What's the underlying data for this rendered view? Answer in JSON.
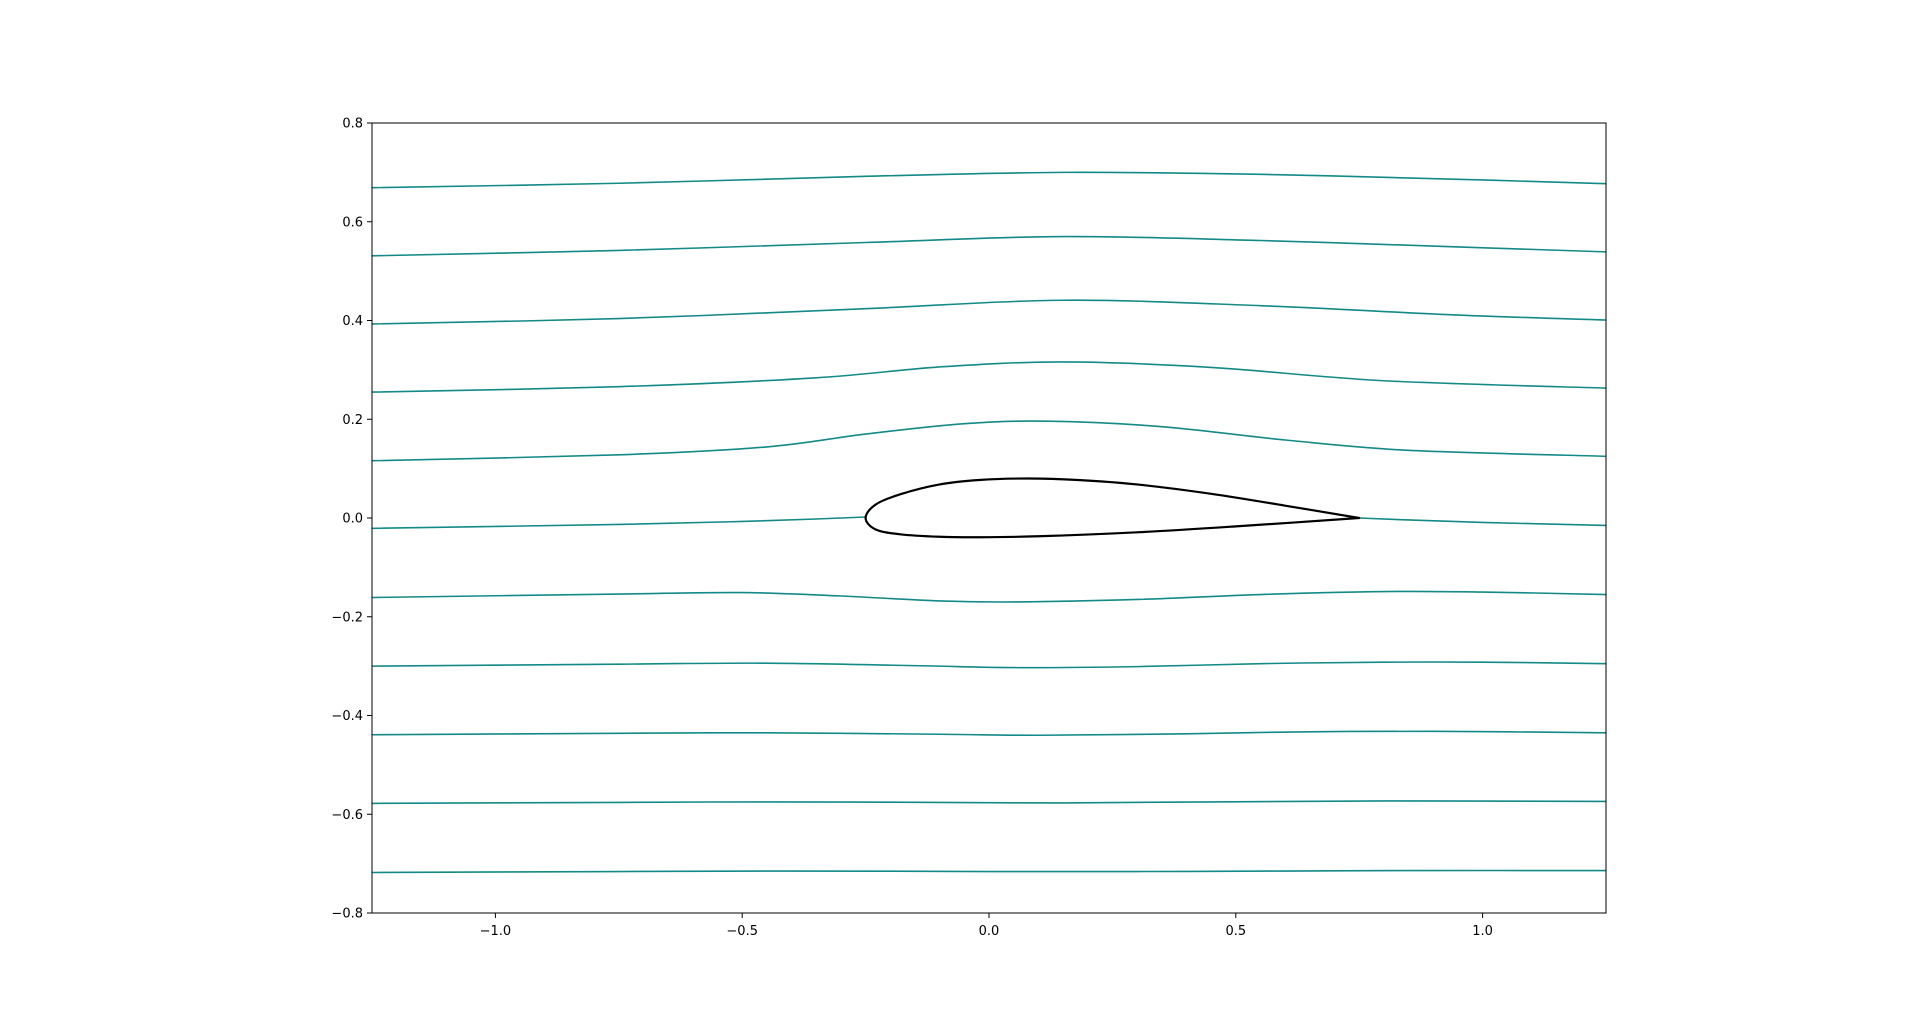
{
  "chart_data": {
    "type": "line",
    "title": "",
    "xlabel": "",
    "ylabel": "",
    "xlim": [
      -1.25,
      1.25
    ],
    "ylim": [
      -0.8,
      0.8
    ],
    "grid": false,
    "legend": "none",
    "x_ticks": [
      -1.0,
      -0.5,
      0.0,
      0.5,
      1.0
    ],
    "x_tick_labels": [
      "−1.0",
      "−0.5",
      "0.0",
      "0.5",
      "1.0"
    ],
    "y_ticks": [
      -0.8,
      -0.6,
      -0.4,
      -0.2,
      0.0,
      0.2,
      0.4,
      0.6,
      0.8
    ],
    "y_tick_labels": [
      "−0.8",
      "−0.6",
      "−0.4",
      "−0.2",
      "0.0",
      "0.2",
      "0.4",
      "0.6",
      "0.8"
    ],
    "colors": {
      "streamline": "#138a87",
      "airfoil": "#000000",
      "axes": "#000000"
    },
    "streamlines": [
      {
        "x": [
          -1.25,
          -0.75,
          -0.25,
          0.15,
          0.55,
          0.95,
          1.25
        ],
        "y": [
          0.669,
          0.678,
          0.692,
          0.7,
          0.696,
          0.686,
          0.677
        ]
      },
      {
        "x": [
          -1.25,
          -0.75,
          -0.25,
          0.15,
          0.55,
          0.95,
          1.25
        ],
        "y": [
          0.531,
          0.542,
          0.558,
          0.57,
          0.562,
          0.549,
          0.539
        ]
      },
      {
        "x": [
          -1.25,
          -0.75,
          -0.25,
          0.15,
          0.55,
          0.95,
          1.25
        ],
        "y": [
          0.393,
          0.404,
          0.424,
          0.441,
          0.43,
          0.411,
          0.401
        ]
      },
      {
        "x": [
          -1.25,
          -0.75,
          -0.35,
          -0.1,
          0.15,
          0.45,
          0.8,
          1.25
        ],
        "y": [
          0.255,
          0.266,
          0.284,
          0.306,
          0.316,
          0.305,
          0.278,
          0.263
        ]
      },
      {
        "x": [
          -1.25,
          -0.75,
          -0.45,
          -0.25,
          -0.05,
          0.12,
          0.35,
          0.6,
          0.85,
          1.25
        ],
        "y": [
          0.116,
          0.128,
          0.144,
          0.17,
          0.191,
          0.196,
          0.185,
          0.158,
          0.137,
          0.125
        ]
      },
      {
        "x": [
          -1.25,
          -0.75,
          -0.5,
          -0.35,
          -0.25
        ],
        "y": [
          -0.021,
          -0.013,
          -0.007,
          -0.002,
          0.002
        ]
      },
      {
        "x": [
          0.75,
          0.85,
          1.0,
          1.25
        ],
        "y": [
          0.0,
          -0.004,
          -0.009,
          -0.015
        ]
      },
      {
        "x": [
          -1.25,
          -0.75,
          -0.5,
          -0.3,
          -0.1,
          0.05,
          0.3,
          0.55,
          0.8,
          1.0,
          1.25
        ],
        "y": [
          -0.161,
          -0.154,
          -0.151,
          -0.158,
          -0.168,
          -0.17,
          -0.165,
          -0.155,
          -0.149,
          -0.15,
          -0.155
        ]
      },
      {
        "x": [
          -1.25,
          -0.75,
          -0.45,
          -0.15,
          0.05,
          0.3,
          0.55,
          0.8,
          1.0,
          1.25
        ],
        "y": [
          -0.3,
          -0.296,
          -0.294,
          -0.299,
          -0.303,
          -0.301,
          -0.295,
          -0.292,
          -0.292,
          -0.295
        ]
      },
      {
        "x": [
          -1.25,
          -0.75,
          -0.45,
          -0.1,
          0.1,
          0.4,
          0.65,
          0.9,
          1.25
        ],
        "y": [
          -0.439,
          -0.436,
          -0.435,
          -0.438,
          -0.44,
          -0.437,
          -0.433,
          -0.432,
          -0.435
        ]
      },
      {
        "x": [
          -1.25,
          -0.75,
          -0.45,
          -0.1,
          0.15,
          0.45,
          0.8,
          1.25
        ],
        "y": [
          -0.578,
          -0.576,
          -0.575,
          -0.576,
          -0.577,
          -0.575,
          -0.573,
          -0.574
        ]
      },
      {
        "x": [
          -1.25,
          -0.75,
          -0.4,
          0.0,
          0.3,
          0.6,
          0.85,
          1.25
        ],
        "y": [
          -0.718,
          -0.716,
          -0.715,
          -0.716,
          -0.716,
          -0.715,
          -0.714,
          -0.714
        ]
      }
    ],
    "airfoil": {
      "x": [
        0.75,
        0.6,
        0.45,
        0.3,
        0.18,
        0.08,
        -0.02,
        -0.1,
        -0.18,
        -0.23,
        -0.25,
        -0.23,
        -0.18,
        -0.1,
        -0.02,
        0.1,
        0.3,
        0.5,
        0.75
      ],
      "y": [
        0.0,
        0.025,
        0.049,
        0.068,
        0.077,
        0.08,
        0.077,
        0.068,
        0.048,
        0.027,
        0.0,
        -0.023,
        -0.033,
        -0.038,
        -0.039,
        -0.037,
        -0.029,
        -0.017,
        0.0
      ]
    }
  }
}
